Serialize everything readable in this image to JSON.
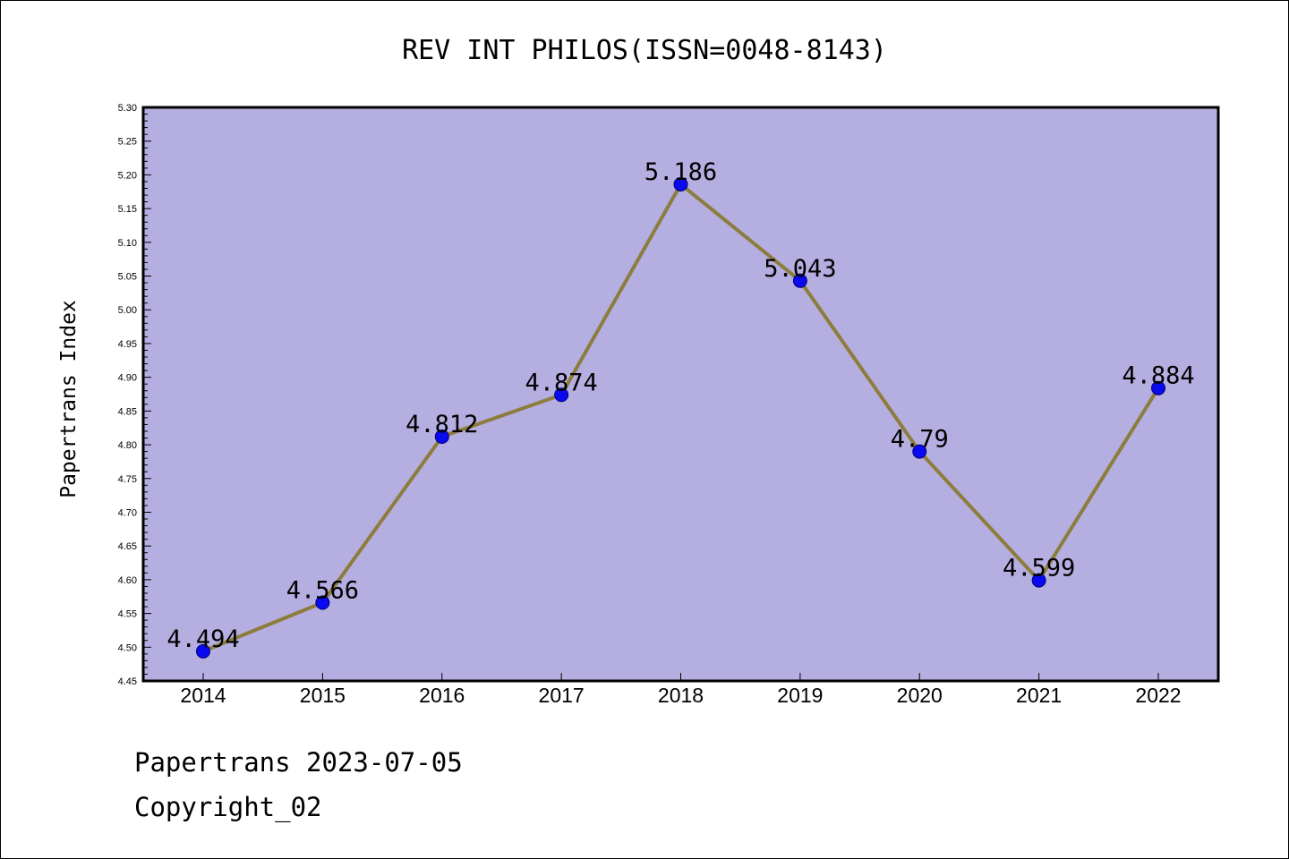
{
  "chart_data": {
    "type": "line",
    "title": "REV INT PHILOS(ISSN=0048-8143)",
    "ylabel": "Papertrans Index",
    "xlabel": "",
    "categories": [
      "2014",
      "2015",
      "2016",
      "2017",
      "2018",
      "2019",
      "2020",
      "2021",
      "2022"
    ],
    "series": [
      {
        "values": [
          4.494,
          4.566,
          4.812,
          4.874,
          5.186,
          5.043,
          4.79,
          4.599,
          4.884
        ],
        "data_labels": [
          "4.494",
          "4.566",
          "4.812",
          "4.874",
          "5.186",
          "5.043",
          "4.79",
          "4.599",
          "4.884"
        ]
      }
    ],
    "ylim": [
      4.45,
      5.3
    ],
    "yticks": [
      "4.45",
      "4.50",
      "4.55",
      "4.60",
      "4.65",
      "4.70",
      "4.75",
      "4.80",
      "4.85",
      "4.90",
      "4.95",
      "5.00",
      "5.05",
      "5.10",
      "5.15",
      "5.20",
      "5.25",
      "5.30"
    ],
    "grid": false,
    "colors": {
      "plot_background": "#b5aee1",
      "line": "#8c7d3c",
      "marker": "#0a0af0",
      "text": "#000000"
    }
  },
  "footer": {
    "line1": "Papertrans 2023-07-05",
    "line2": "Copyright_02"
  }
}
